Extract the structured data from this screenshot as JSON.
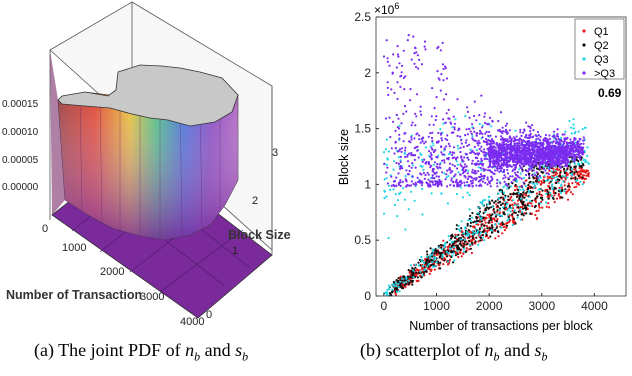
{
  "captions": {
    "a": "(a) The joint PDF of n_b and s_b",
    "b": "(b) scatterplot of n_b and s_b"
  },
  "colors": {
    "Q1": "#e41a1c",
    "Q2": "#111111",
    "Q3": "#22d3e6",
    ">Q3": "#7b2cf0",
    "surface_top": "#c8c8c8",
    "surface_floor": "#7a2a9a"
  },
  "chart_data": [
    {
      "type": "surface3d",
      "title": "",
      "xlabel": "Number of Transaction",
      "ylabel": "Block Size",
      "zlabel": "",
      "x_ticks": [
        "0",
        "1000",
        "2000",
        "3000",
        "4000"
      ],
      "y_ticks": [
        "0",
        "1",
        "2",
        "3"
      ],
      "z_ticks": [
        "0.00000",
        "0.00005",
        "0.00010",
        "0.00015"
      ],
      "xlim": [
        0,
        4000
      ],
      "ylim": [
        0,
        3
      ],
      "zlim": [
        0,
        0.00015
      ],
      "note_values": {
        "peak_density": 0.00015,
        "peak_block_size_range": [
          1,
          1.5
        ],
        "peak_transactions_range": [
          0,
          3800
        ]
      }
    },
    {
      "type": "scatter",
      "title": "",
      "xlabel": "Number of transactions per block",
      "ylabel": "Block size",
      "y_scale_label": "×10^6",
      "x_ticks": [
        "0",
        "1000",
        "2000",
        "3000",
        "4000"
      ],
      "y_ticks": [
        "0",
        "0.5",
        "1",
        "1.5",
        "2",
        "2.5"
      ],
      "xlim": [
        -150,
        4600
      ],
      "ylim": [
        0,
        2.5
      ],
      "annotation": "0.69",
      "legend_position": "top-right",
      "series": [
        {
          "name": "Q1",
          "color": "#e41a1c",
          "region": "lower-wedge",
          "x_range": [
            200,
            3900
          ],
          "y_range": [
            0.05,
            1.15
          ]
        },
        {
          "name": "Q2",
          "color": "#111111",
          "region": "lower-wedge",
          "x_range": [
            100,
            3800
          ],
          "y_range": [
            0.03,
            1.25
          ]
        },
        {
          "name": "Q3",
          "color": "#22d3e6",
          "region": "mixed",
          "x_range": [
            0,
            3900
          ],
          "y_range": [
            0,
            1.9
          ]
        },
        {
          "name": ">Q3",
          "color": "#7b2cf0",
          "region": "upper-fan",
          "x_range": [
            0,
            3800
          ],
          "y_range": [
            0.95,
            2.35
          ]
        }
      ]
    }
  ]
}
